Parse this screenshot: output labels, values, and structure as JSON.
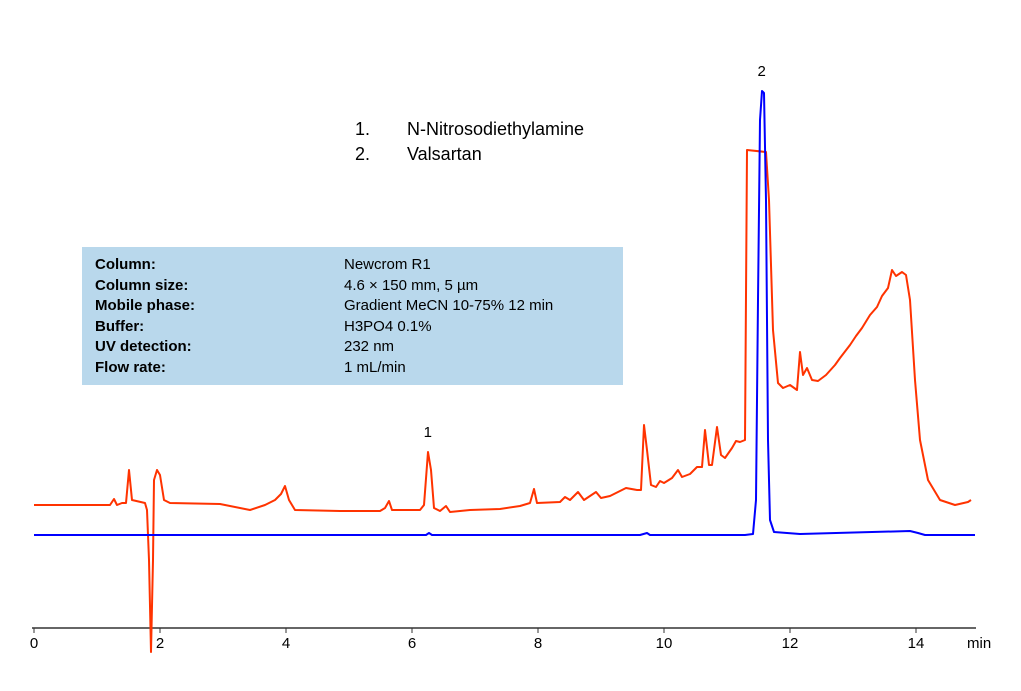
{
  "chart_data": {
    "type": "line",
    "title": "",
    "xlabel": "min",
    "ylabel": "",
    "xlim": [
      0,
      14.9
    ],
    "ylim": [
      -120,
      450
    ],
    "x_ticks": [
      "0",
      "2",
      "4",
      "6",
      "8",
      "10",
      "12",
      "14"
    ],
    "grid": false,
    "series": [
      {
        "color": "#ff3300",
        "points": [
          [
            0,
            30
          ],
          [
            1.206,
            30
          ],
          [
            1.27,
            36
          ],
          [
            1.317,
            30
          ],
          [
            1.397,
            32
          ],
          [
            1.46,
            32
          ],
          [
            1.508,
            65
          ],
          [
            1.556,
            35
          ],
          [
            1.762,
            32
          ],
          [
            1.794,
            25
          ],
          [
            1.825,
            -25
          ],
          [
            1.857,
            -117
          ],
          [
            1.889,
            -25
          ],
          [
            1.905,
            55
          ],
          [
            1.952,
            65
          ],
          [
            2.0,
            60
          ],
          [
            2.063,
            35
          ],
          [
            2.159,
            32
          ],
          [
            2.952,
            31
          ],
          [
            3.429,
            25
          ],
          [
            3.667,
            30
          ],
          [
            3.825,
            35
          ],
          [
            3.921,
            41
          ],
          [
            3.984,
            49
          ],
          [
            4.048,
            35
          ],
          [
            4.143,
            25
          ],
          [
            4.857,
            24
          ],
          [
            5.492,
            24
          ],
          [
            5.571,
            27
          ],
          [
            5.635,
            34
          ],
          [
            5.683,
            25
          ],
          [
            6.127,
            25
          ],
          [
            6.19,
            30
          ],
          [
            6.254,
            83
          ],
          [
            6.302,
            65
          ],
          [
            6.349,
            27
          ],
          [
            6.444,
            24
          ],
          [
            6.54,
            29
          ],
          [
            6.603,
            23
          ],
          [
            6.921,
            25
          ],
          [
            7.397,
            26
          ],
          [
            7.714,
            29
          ],
          [
            7.873,
            32
          ],
          [
            7.937,
            46
          ],
          [
            7.984,
            32
          ],
          [
            8.349,
            33
          ],
          [
            8.429,
            38
          ],
          [
            8.508,
            35
          ],
          [
            8.635,
            43
          ],
          [
            8.73,
            35
          ],
          [
            8.921,
            43
          ],
          [
            9.0,
            37
          ],
          [
            9.143,
            39
          ],
          [
            9.333,
            45
          ],
          [
            9.397,
            47
          ],
          [
            9.571,
            45
          ],
          [
            9.635,
            45
          ],
          [
            9.683,
            110
          ],
          [
            9.73,
            85
          ],
          [
            9.794,
            50
          ],
          [
            9.873,
            48
          ],
          [
            9.937,
            54
          ],
          [
            10.0,
            52
          ],
          [
            10.127,
            57
          ],
          [
            10.222,
            65
          ],
          [
            10.286,
            58
          ],
          [
            10.413,
            61
          ],
          [
            10.524,
            68
          ],
          [
            10.603,
            68
          ],
          [
            10.651,
            105
          ],
          [
            10.714,
            70
          ],
          [
            10.762,
            70
          ],
          [
            10.841,
            108
          ],
          [
            10.905,
            80
          ],
          [
            10.968,
            77
          ],
          [
            11.079,
            87
          ],
          [
            11.143,
            94
          ],
          [
            11.206,
            93
          ],
          [
            11.286,
            95
          ],
          [
            11.317,
            385
          ],
          [
            11.619,
            383
          ],
          [
            11.667,
            335
          ],
          [
            11.73,
            205
          ],
          [
            11.81,
            152
          ],
          [
            11.889,
            147
          ],
          [
            12.0,
            150
          ],
          [
            12.111,
            145
          ],
          [
            12.159,
            183
          ],
          [
            12.206,
            160
          ],
          [
            12.27,
            167
          ],
          [
            12.349,
            155
          ],
          [
            12.444,
            154
          ],
          [
            12.571,
            160
          ],
          [
            12.714,
            170
          ],
          [
            12.794,
            177
          ],
          [
            12.952,
            190
          ],
          [
            13.048,
            199
          ],
          [
            13.143,
            207
          ],
          [
            13.27,
            220
          ],
          [
            13.381,
            228
          ],
          [
            13.46,
            239
          ],
          [
            13.556,
            247
          ],
          [
            13.619,
            265
          ],
          [
            13.683,
            259
          ],
          [
            13.778,
            263
          ],
          [
            13.841,
            260
          ],
          [
            13.905,
            235
          ],
          [
            13.984,
            155
          ],
          [
            14.063,
            95
          ],
          [
            14.19,
            55
          ],
          [
            14.381,
            35
          ],
          [
            14.619,
            30
          ],
          [
            14.825,
            33
          ],
          [
            14.873,
            35
          ]
        ]
      },
      {
        "color": "#0000ff",
        "points": [
          [
            0,
            0
          ],
          [
            4.222,
            0
          ],
          [
            6.222,
            0
          ],
          [
            6.27,
            2
          ],
          [
            6.317,
            0
          ],
          [
            9.619,
            0
          ],
          [
            9.73,
            2
          ],
          [
            9.778,
            0
          ],
          [
            11.286,
            0
          ],
          [
            11.413,
            1
          ],
          [
            11.46,
            35
          ],
          [
            11.492,
            235
          ],
          [
            11.524,
            415
          ],
          [
            11.556,
            444
          ],
          [
            11.587,
            442
          ],
          [
            11.619,
            335
          ],
          [
            11.651,
            95
          ],
          [
            11.683,
            15
          ],
          [
            11.746,
            3
          ],
          [
            12.159,
            1
          ],
          [
            13.905,
            4
          ],
          [
            14.032,
            2
          ],
          [
            14.143,
            0
          ],
          [
            14.937,
            0
          ]
        ]
      }
    ],
    "peak_labels": [
      {
        "label": "1",
        "x": 6.25,
        "y": 83
      },
      {
        "label": "2",
        "x": 11.55,
        "y": 444
      }
    ]
  },
  "legend": [
    {
      "num": "1.",
      "name": "N-Nitrosodiethylamine"
    },
    {
      "num": "2.",
      "name": "Valsartan"
    }
  ],
  "info_box": {
    "background": "#b9d8ec",
    "rows": [
      {
        "label": "Column:",
        "value": "Newcrom R1"
      },
      {
        "label": "Column size:",
        "value": "4.6 × 150 mm, 5 µm"
      },
      {
        "label": "Mobile phase:",
        "value": "Gradient MeCN  10-75%  12 min"
      },
      {
        "label": "Buffer:",
        "value": "H3PO4 0.1%"
      },
      {
        "label": "UV detection:",
        "value": "232 nm"
      },
      {
        "label": "Flow rate:",
        "value": "1 mL/min"
      }
    ]
  }
}
